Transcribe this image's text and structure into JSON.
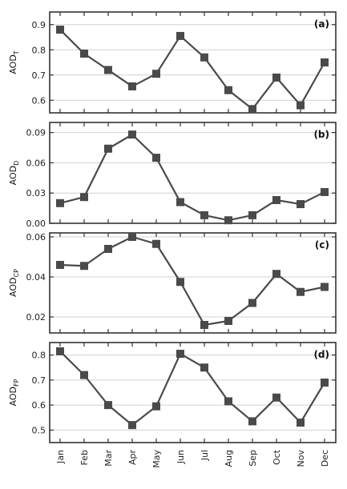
{
  "chart_data": [
    {
      "type": "line",
      "tag": "(a)",
      "ylabel": "AOD",
      "ylabel_sub": "T",
      "categories": [
        "Jan",
        "Feb",
        "Mar",
        "Apr",
        "May",
        "Jun",
        "Jul",
        "Aug",
        "Sep",
        "Oct",
        "Nov",
        "Dec"
      ],
      "values": [
        0.88,
        0.785,
        0.72,
        0.655,
        0.705,
        0.855,
        0.77,
        0.64,
        0.565,
        0.69,
        0.58,
        0.75
      ],
      "ylim": [
        0.55,
        0.95
      ],
      "yticks": [
        0.6,
        0.7,
        0.8,
        0.9
      ],
      "ytick_labels": [
        "0.6",
        "0.7",
        "0.8",
        "0.9"
      ],
      "grid": true
    },
    {
      "type": "line",
      "tag": "(b)",
      "ylabel": "AOD",
      "ylabel_sub": "D",
      "categories": [
        "Jan",
        "Feb",
        "Mar",
        "Apr",
        "May",
        "Jun",
        "Jul",
        "Aug",
        "Sep",
        "Oct",
        "Nov",
        "Dec"
      ],
      "values": [
        0.02,
        0.026,
        0.074,
        0.088,
        0.065,
        0.021,
        0.008,
        0.003,
        0.008,
        0.023,
        0.019,
        0.031
      ],
      "ylim": [
        0.0,
        0.1
      ],
      "yticks": [
        0.0,
        0.03,
        0.06,
        0.09
      ],
      "ytick_labels": [
        "0.00",
        "0.03",
        "0.06",
        "0.09"
      ],
      "grid": true
    },
    {
      "type": "line",
      "tag": "(c)",
      "ylabel": "AOD",
      "ylabel_sub": "CP",
      "categories": [
        "Jan",
        "Feb",
        "Mar",
        "Apr",
        "May",
        "Jun",
        "Jul",
        "Aug",
        "Sep",
        "Oct",
        "Nov",
        "Dec"
      ],
      "values": [
        0.046,
        0.0455,
        0.054,
        0.06,
        0.0565,
        0.0375,
        0.016,
        0.018,
        0.027,
        0.0415,
        0.0325,
        0.035
      ],
      "ylim": [
        0.012,
        0.062
      ],
      "yticks": [
        0.02,
        0.04,
        0.06
      ],
      "ytick_labels": [
        "0.02",
        "0.04",
        "0.06"
      ],
      "grid": true
    },
    {
      "type": "line",
      "tag": "(d)",
      "ylabel": "AOD",
      "ylabel_sub": "FP",
      "categories": [
        "Jan",
        "Feb",
        "Mar",
        "Apr",
        "May",
        "Jun",
        "Jul",
        "Aug",
        "Sep",
        "Oct",
        "Nov",
        "Dec"
      ],
      "values": [
        0.815,
        0.72,
        0.6,
        0.52,
        0.595,
        0.805,
        0.75,
        0.615,
        0.535,
        0.63,
        0.53,
        0.69
      ],
      "ylim": [
        0.45,
        0.85
      ],
      "yticks": [
        0.5,
        0.6,
        0.7,
        0.8
      ],
      "ytick_labels": [
        "0.5",
        "0.6",
        "0.7",
        "0.8"
      ],
      "grid": true
    }
  ],
  "colors": {
    "line": "#4a4a4a",
    "marker": "#4a4a4a",
    "grid": "#d0d0d0",
    "frame": "#333333"
  }
}
